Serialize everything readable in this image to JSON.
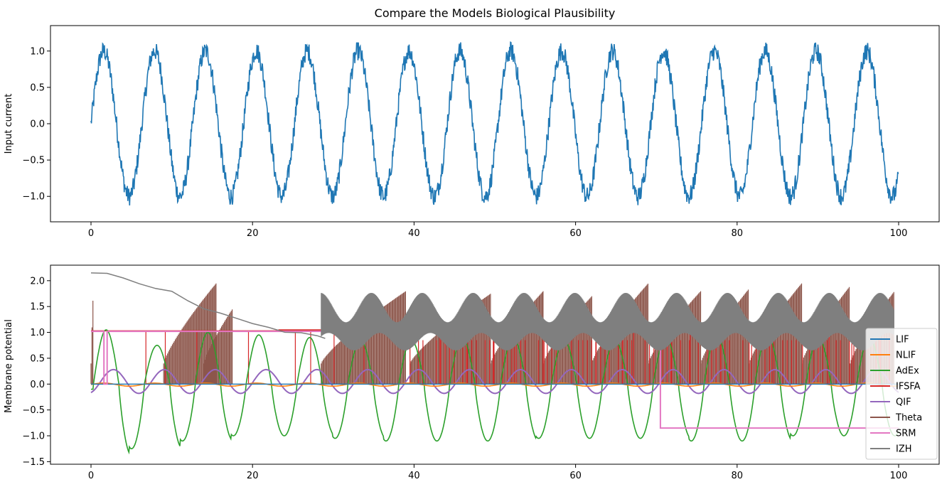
{
  "chart_data": [
    {
      "type": "line",
      "title": "Compare the Models Biological Plausibility",
      "xlabel": "",
      "ylabel": "Input current",
      "xlim": [
        0,
        100
      ],
      "ylim": [
        -1.35,
        1.35
      ],
      "xticks": [
        0,
        20,
        40,
        60,
        80,
        100
      ],
      "yticks": [
        -1.0,
        -0.5,
        0.0,
        0.5,
        1.0
      ],
      "xtick_labels": [
        "0",
        "20",
        "40",
        "60",
        "80",
        "100"
      ],
      "ytick_labels": [
        "−1.0",
        "−0.5",
        "0.0",
        "0.5",
        "1.0"
      ],
      "grid": false,
      "series": [
        {
          "color": "#1f77b4",
          "description": "noisy sine wave, amplitude about 1.0 with noise about 0.12, period about 6.3, starting at 0",
          "x": [
            0,
            1,
            2,
            3,
            4,
            5,
            6,
            7,
            8,
            9,
            10,
            11,
            12,
            13,
            14,
            15,
            16,
            17,
            18,
            19,
            20,
            21,
            22,
            23,
            24,
            25,
            26,
            27,
            28,
            29,
            30,
            31,
            32,
            33,
            34,
            35,
            36,
            37,
            38,
            39,
            40,
            41,
            42,
            43,
            44,
            45,
            46,
            47,
            48,
            49,
            50,
            51,
            52,
            53,
            54,
            55,
            56,
            57,
            58,
            59,
            60,
            61,
            62,
            63,
            64,
            65,
            66,
            67,
            68,
            69,
            70,
            71,
            72,
            73,
            74,
            75,
            76,
            77,
            78,
            79,
            80,
            81,
            82,
            83,
            84,
            85,
            86,
            87,
            88,
            89,
            90,
            91,
            92,
            93,
            94,
            95,
            96,
            97,
            98,
            99,
            100
          ],
          "y": [
            0.02,
            0.9,
            1.1,
            0.25,
            -0.7,
            -1.1,
            -0.4,
            0.6,
            1.05,
            0.45,
            -0.55,
            -1.05,
            -0.6,
            0.45,
            1.15,
            0.65,
            -0.35,
            -1.1,
            -0.8,
            0.2,
            0.95,
            0.9,
            -0.1,
            -0.95,
            -0.95,
            0.05,
            0.85,
            1.0,
            0.1,
            -0.8,
            -1.05,
            -0.25,
            0.7,
            1.05,
            0.35,
            -0.65,
            -1.05,
            -0.45,
            0.5,
            1.05,
            0.55,
            -0.5,
            -1.1,
            -0.65,
            0.35,
            1.0,
            0.7,
            -0.25,
            -1.15,
            -0.8,
            0.15,
            0.95,
            0.8,
            -0.1,
            -0.95,
            -0.9,
            0.05,
            0.9,
            0.95,
            0.1,
            -0.85,
            -1.0,
            -0.2,
            0.75,
            1.0,
            0.3,
            -0.7,
            -1.1,
            -0.45,
            0.6,
            1.05,
            0.5,
            -0.55,
            -1.05,
            -0.55,
            0.45,
            1.05,
            0.65,
            -0.4,
            -1.1,
            -0.75,
            0.25,
            1.0,
            0.85,
            -0.15,
            -1.0,
            -0.85,
            0.1,
            0.95,
            0.95,
            0.0,
            -0.9,
            -1.05,
            -0.05,
            0.85,
            1.0,
            0.2,
            -0.8,
            -1.0,
            -0.85,
            -0.55
          ]
        }
      ]
    },
    {
      "type": "line",
      "xlabel": "",
      "ylabel": "Membrane potential",
      "xlim": [
        0,
        100
      ],
      "ylim": [
        -1.55,
        2.3
      ],
      "xticks": [
        0,
        20,
        40,
        60,
        80,
        100
      ],
      "yticks": [
        -1.5,
        -1.0,
        -0.5,
        0.0,
        0.5,
        1.0,
        1.5,
        2.0
      ],
      "xtick_labels": [
        "0",
        "20",
        "40",
        "60",
        "80",
        "100"
      ],
      "ytick_labels": [
        "−1.5",
        "−1.0",
        "−0.5",
        "0.0",
        "0.5",
        "1.0",
        "1.5",
        "2.0"
      ],
      "grid": false,
      "legend": "right",
      "series": [
        {
          "name": "LIF",
          "color": "#1f77b4",
          "description": "flat near 0",
          "x": [
            0,
            100
          ],
          "y": [
            0.0,
            0.0
          ]
        },
        {
          "name": "NLIF",
          "color": "#ff7f0e",
          "description": "small oscillation near 0",
          "amplitude": 0.03,
          "period": 6.3
        },
        {
          "name": "AdEx",
          "color": "#2ca02c",
          "description": "large oscillation, peaks near 1.0, troughs near -1.1 (first trough -1.38)",
          "peaks": [
            1.05,
            0.75,
            1.0,
            0.95,
            0.9,
            0.85,
            0.85,
            0.9,
            0.9,
            0.85,
            0.85,
            0.9,
            0.95,
            0.95,
            0.9,
            0.9
          ],
          "troughs": [
            -1.38,
            -1.25,
            -1.1,
            -1.0,
            -1.0,
            -1.05,
            -1.1,
            -1.1,
            -1.1,
            -1.05,
            -1.05,
            -1.05,
            -1.1,
            -1.1,
            -1.0
          ]
        },
        {
          "name": "IFSFA",
          "color": "#d62728",
          "description": "spike train between about 0 and 1.05"
        },
        {
          "name": "QIF",
          "color": "#9467bd",
          "description": "oscillation between about -0.2 and 0.3",
          "amplitude": 0.23,
          "offset": 0.05,
          "period": 6.3
        },
        {
          "name": "Theta",
          "color": "#8c564b",
          "description": "dense spike bands reaching up to about 1.95"
        },
        {
          "name": "SRM",
          "color": "#e377c2",
          "description": "step function: 1.02 from 0 to about 70.5, then -0.85",
          "x": [
            0,
            1.6,
            1.6,
            2.0,
            2.0,
            70.5,
            70.5,
            100
          ],
          "y": [
            1.02,
            1.02,
            0.0,
            0.0,
            1.02,
            1.02,
            -0.85,
            -0.85
          ]
        },
        {
          "name": "IZH",
          "color": "#7f7f7f",
          "description": "decaying line from 2.15 to about 0.9, then dense oscillation band between about 0.5 and 1.8"
        }
      ]
    }
  ]
}
